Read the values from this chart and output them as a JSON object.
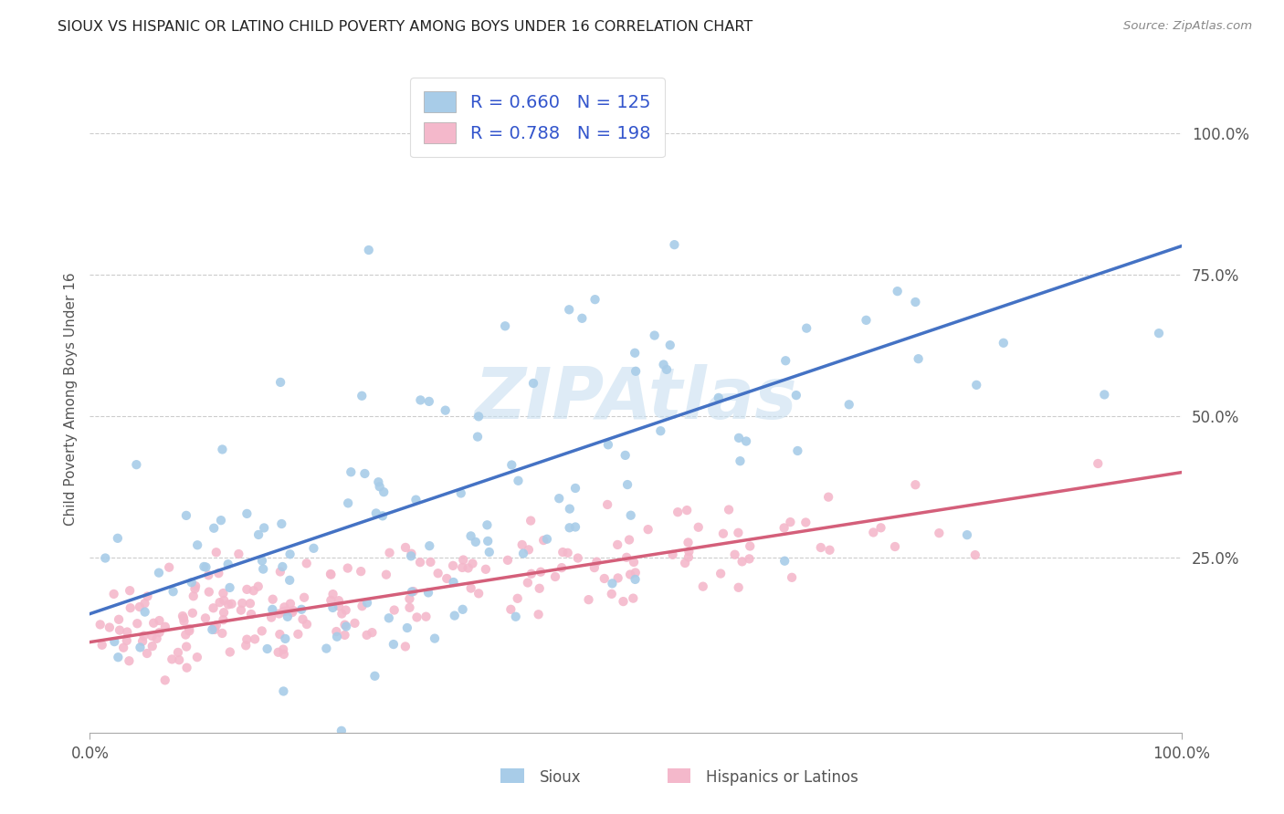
{
  "title": "SIOUX VS HISPANIC OR LATINO CHILD POVERTY AMONG BOYS UNDER 16 CORRELATION CHART",
  "source": "Source: ZipAtlas.com",
  "ylabel": "Child Poverty Among Boys Under 16",
  "watermark": "ZIPAtlas",
  "sioux_R": 0.66,
  "sioux_N": 125,
  "hispanic_R": 0.788,
  "hispanic_N": 198,
  "sioux_color": "#a8cce8",
  "sioux_line_color": "#4472c4",
  "hispanic_color": "#f4b8cb",
  "hispanic_line_color": "#d45f7a",
  "background_color": "#ffffff",
  "grid_color": "#cccccc",
  "title_color": "#222222",
  "legend_text_color": "#3355cc",
  "xlim": [
    0,
    1
  ],
  "ylim": [
    -0.06,
    1.12
  ],
  "xtick_labels": [
    "0.0%",
    "100.0%"
  ],
  "ytick_labels": [
    "25.0%",
    "50.0%",
    "75.0%",
    "100.0%"
  ],
  "ytick_positions": [
    0.25,
    0.5,
    0.75,
    1.0
  ],
  "sioux_seed": 42,
  "hispanic_seed": 99,
  "sioux_line_start": 0.15,
  "sioux_line_end": 0.8,
  "hispanic_line_start": 0.1,
  "hispanic_line_end": 0.4
}
